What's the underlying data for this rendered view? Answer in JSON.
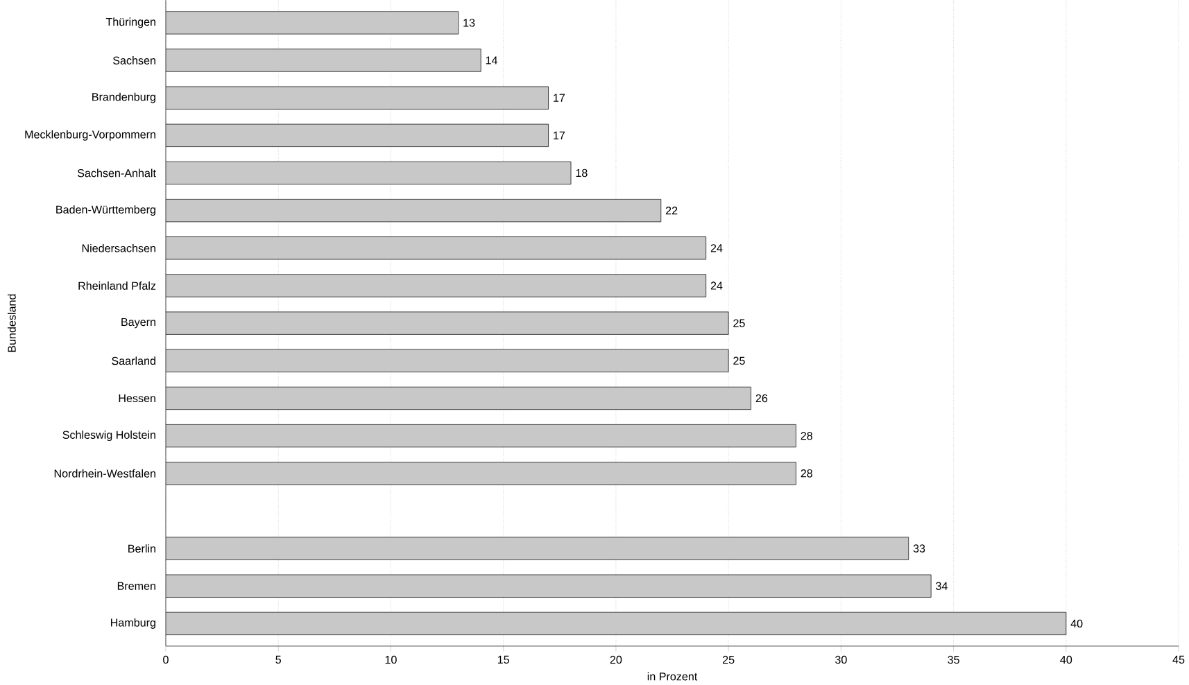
{
  "chart_data": {
    "type": "bar",
    "orientation": "horizontal",
    "xlabel": "in Prozent",
    "ylabel": "Bundesland",
    "categories": [
      "Thüringen",
      "Sachsen",
      "Brandenburg",
      "Mecklenburg-Vorpommern",
      "Sachsen-Anhalt",
      "Baden-Württemberg",
      "Niedersachsen",
      "Rheinland Pfalz",
      "Bayern",
      "Saarland",
      "Hessen",
      "Schleswig Holstein",
      "Nordrhein-Westfalen",
      null,
      "Berlin",
      "Bremen",
      "Hamburg"
    ],
    "values": [
      13,
      14,
      17,
      17,
      18,
      22,
      24,
      24,
      25,
      25,
      26,
      28,
      28,
      null,
      33,
      34,
      40
    ],
    "color": "#c8c8c8",
    "data_labels": true,
    "grid": "x",
    "xlim": [
      0,
      45
    ],
    "xticks": [
      0,
      5,
      10,
      15,
      20,
      25,
      30,
      35,
      40,
      45
    ]
  }
}
